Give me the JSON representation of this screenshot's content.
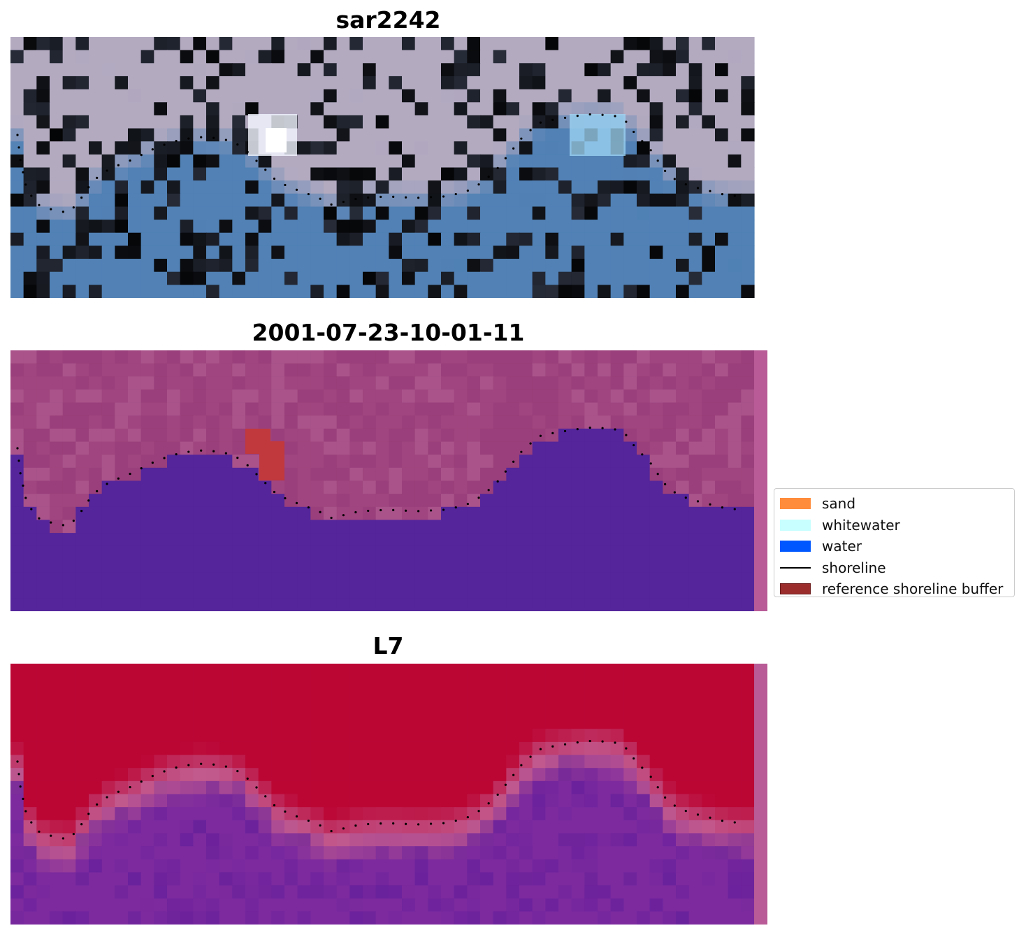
{
  "panels": [
    {
      "id": "p1",
      "title": "sar2242",
      "kind": "rgb"
    },
    {
      "id": "p2",
      "title": "2001-07-23-10-01-11",
      "kind": "classified"
    },
    {
      "id": "p3",
      "title": "L7",
      "kind": "mndwi"
    }
  ],
  "legend": {
    "items": [
      {
        "label": "sand",
        "type": "patch",
        "color": "#ff8c3b"
      },
      {
        "label": "whitewater",
        "type": "patch",
        "color": "#c8ffff"
      },
      {
        "label": "water",
        "type": "patch",
        "color": "#0057ff"
      },
      {
        "label": "shoreline",
        "type": "line",
        "color": "#000000"
      },
      {
        "label": "reference shoreline buffer",
        "type": "patch",
        "color": "#9b2d2d",
        "edge": "#6b1a1a"
      }
    ]
  },
  "colors": {
    "rgb_land": "#b3aac0",
    "rgb_water": "#5181b5",
    "classified_land": "#a0457f",
    "classified_water": "#54259b",
    "classified_strip": "#b85b96",
    "mndwi_land": "#bb0634",
    "mndwi_water": "#7c2a9e",
    "mndwi_transition": "#c25a8e",
    "sand_red_blob": "#c1383d",
    "shoreline_dots": "#000000"
  }
}
